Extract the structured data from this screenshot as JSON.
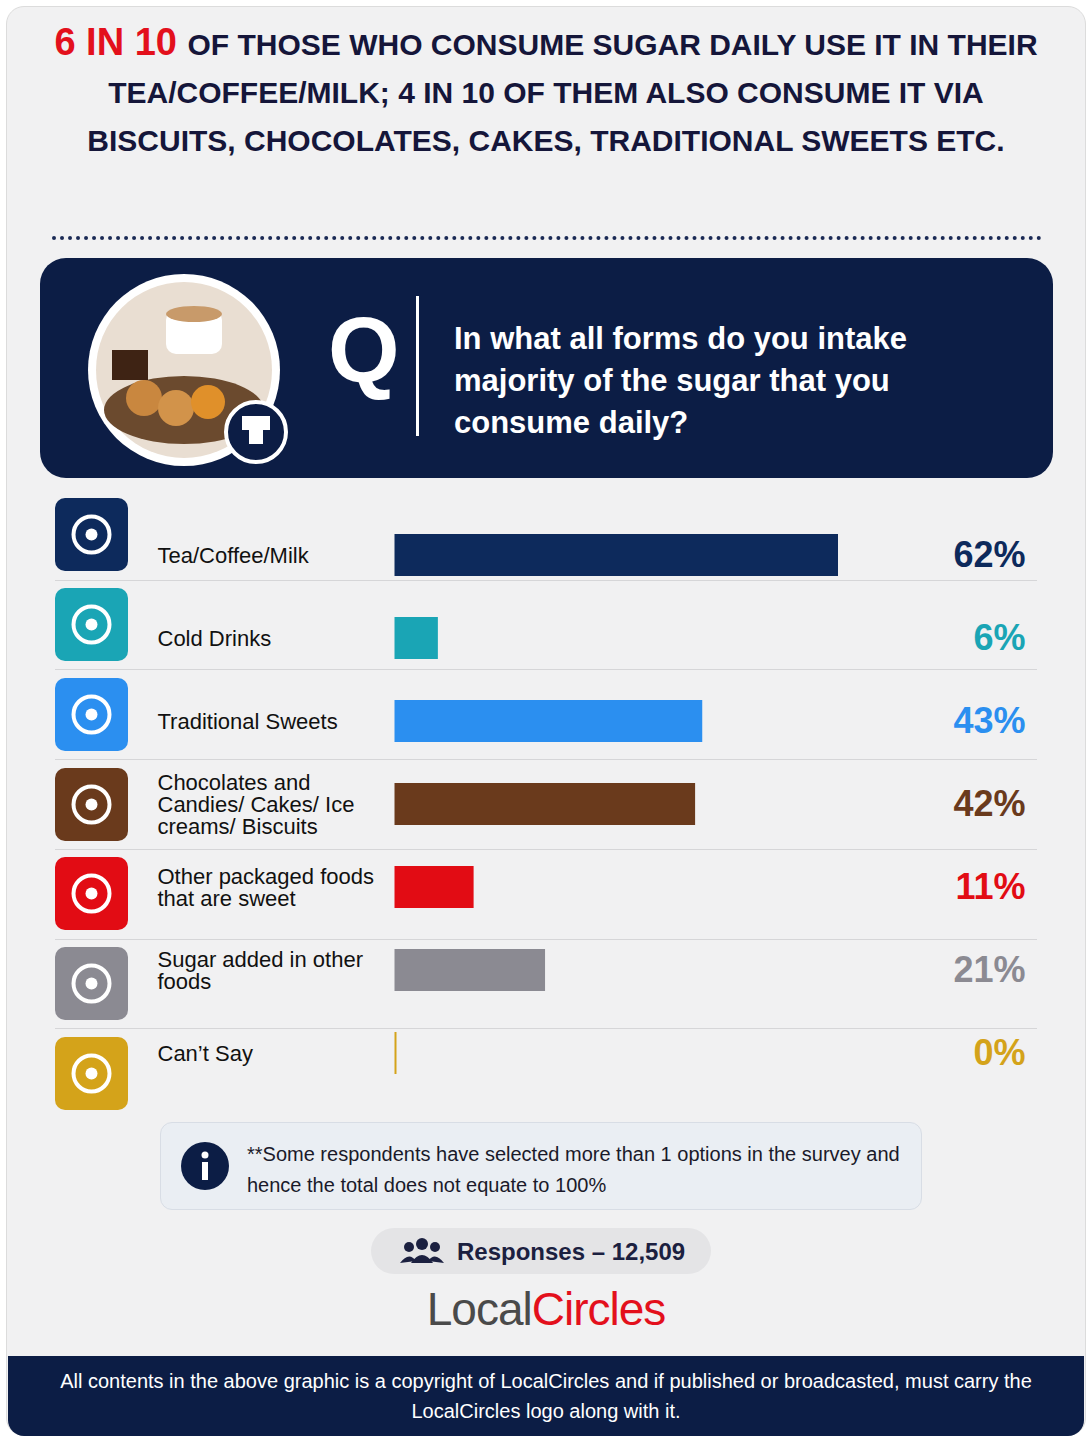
{
  "chart_data": {
    "type": "bar",
    "orientation": "horizontal",
    "title": "6 IN 10 OF THOSE WHO CONSUME SUGAR DAILY USE IT IN THEIR TEA/COFFEE/MILK; 4 IN 10 OF THEM ALSO CONSUME IT VIA BISCUITS, CHOCOLATES, CAKES, TRADITIONAL SWEETS ETC.",
    "question_label": "Q",
    "subtitle": "In what all forms do you intake majority of the sugar that you consume daily?",
    "categories": [
      "Tea/Coffee/Milk",
      "Cold Drinks",
      "Traditional Sweets",
      "Chocolates and Candies/ Cakes/ Ice creams/ Biscuits",
      "Other packaged foods that are sweet",
      "Sugar added in other foods",
      "Can’t Say"
    ],
    "values": [
      62,
      6,
      43,
      42,
      11,
      21,
      0
    ],
    "value_labels": [
      "62%",
      "6%",
      "43%",
      "42%",
      "11%",
      "21%",
      "0%"
    ],
    "colors": [
      "#0d2a5c",
      "#1aa5b5",
      "#2b8ff0",
      "#6a3a1c",
      "#e20c14",
      "#8b8a92",
      "#d4a31a"
    ],
    "data_labels": true,
    "tick_labels": "y",
    "grid": false,
    "note": "**Some respondents  have selected more than 1 options in the survey and hence the total does not equate to 100%",
    "responses": "Responses – 12,509",
    "source": "LocalCircles",
    "copyright": "All contents in the above graphic is a copyright of LocalCircles and if published or broadcasted, must carry the LocalCircles logo along with it."
  }
}
